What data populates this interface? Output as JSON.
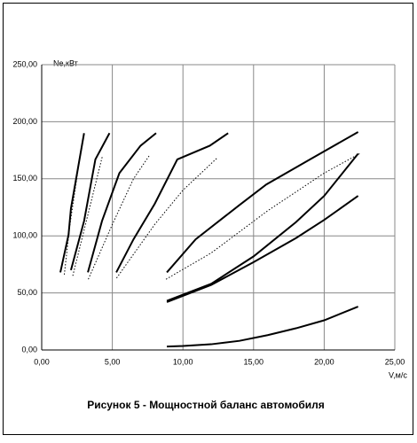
{
  "chart_data": {
    "type": "line",
    "title": "Рисунок 5 - Мощностной баланс автомобиля",
    "y_label": "Ne,кВт",
    "x_label": "V,м/с",
    "xlim": [
      0,
      25
    ],
    "ylim": [
      0,
      250
    ],
    "xticks": [
      {
        "value": 0,
        "label": "0,00"
      },
      {
        "value": 5,
        "label": "5,00"
      },
      {
        "value": 10,
        "label": "10,00"
      },
      {
        "value": 15,
        "label": "15,00"
      },
      {
        "value": 20,
        "label": "20,00"
      },
      {
        "value": 25,
        "label": "25,00"
      }
    ],
    "yticks": [
      {
        "value": 0,
        "label": "0,00"
      },
      {
        "value": 50,
        "label": "50,00"
      },
      {
        "value": 100,
        "label": "100,00"
      },
      {
        "value": 150,
        "label": "150,00"
      },
      {
        "value": 200,
        "label": "200,00"
      },
      {
        "value": 250,
        "label": "250,00"
      }
    ],
    "grid": true,
    "series": [
      {
        "color": "#000000",
        "dash": "solid",
        "x": [
          1.32,
          1.9,
          2.07,
          3.0
        ],
        "values": [
          68,
          101,
          124,
          190
        ]
      },
      {
        "color": "#000000",
        "dash": "dotted",
        "x": [
          1.6,
          2.0,
          2.6
        ],
        "values": [
          66,
          110,
          160
        ]
      },
      {
        "color": "#000000",
        "dash": "solid",
        "x": [
          2.07,
          3.0,
          3.8,
          4.8
        ],
        "values": [
          70,
          113,
          167,
          190
        ]
      },
      {
        "color": "#000000",
        "dash": "dotted",
        "x": [
          2.2,
          3.2,
          4.3
        ],
        "values": [
          65,
          115,
          170
        ]
      },
      {
        "color": "#000000",
        "dash": "solid",
        "x": [
          3.27,
          4.27,
          5.5,
          7.0,
          8.1
        ],
        "values": [
          68,
          113,
          155,
          179,
          190
        ]
      },
      {
        "color": "#000000",
        "dash": "dotted",
        "x": [
          3.3,
          5.0,
          6.5,
          7.6
        ],
        "values": [
          62,
          110,
          150,
          170
        ]
      },
      {
        "color": "#000000",
        "dash": "solid",
        "x": [
          5.28,
          6.5,
          8.0,
          9.6,
          11.9,
          13.2
        ],
        "values": [
          68,
          97,
          128,
          167,
          179,
          190
        ]
      },
      {
        "color": "#000000",
        "dash": "dotted",
        "x": [
          5.3,
          8.0,
          10.0,
          12.4
        ],
        "values": [
          63,
          110,
          140,
          168
        ]
      },
      {
        "color": "#000000",
        "dash": "solid",
        "x": [
          8.86,
          10.9,
          14.0,
          15.9,
          19.0,
          22.4
        ],
        "values": [
          68,
          97,
          127,
          145,
          167,
          191
        ]
      },
      {
        "color": "#000000",
        "dash": "dotted",
        "x": [
          8.8,
          12.0,
          16.0,
          20.0,
          22.5
        ],
        "values": [
          62,
          85,
          122,
          155,
          172
        ]
      },
      {
        "color": "#000000",
        "dash": "solid",
        "x": [
          8.86,
          12.0,
          15.0,
          18.0,
          20.0,
          22.4
        ],
        "values": [
          43,
          58,
          82,
          112,
          135,
          172
        ]
      },
      {
        "color": "#000000",
        "dash": "solid",
        "x": [
          8.86,
          12.0,
          15.0,
          18.0,
          20.0,
          22.4
        ],
        "values": [
          42,
          57,
          77,
          98,
          114,
          135
        ]
      },
      {
        "color": "#000000",
        "dash": "solid",
        "x": [
          8.86,
          10.0,
          12.0,
          14.0,
          16.0,
          18.0,
          20.0,
          22.4
        ],
        "values": [
          3,
          3.5,
          5,
          8,
          13,
          19,
          26,
          38
        ]
      }
    ]
  }
}
